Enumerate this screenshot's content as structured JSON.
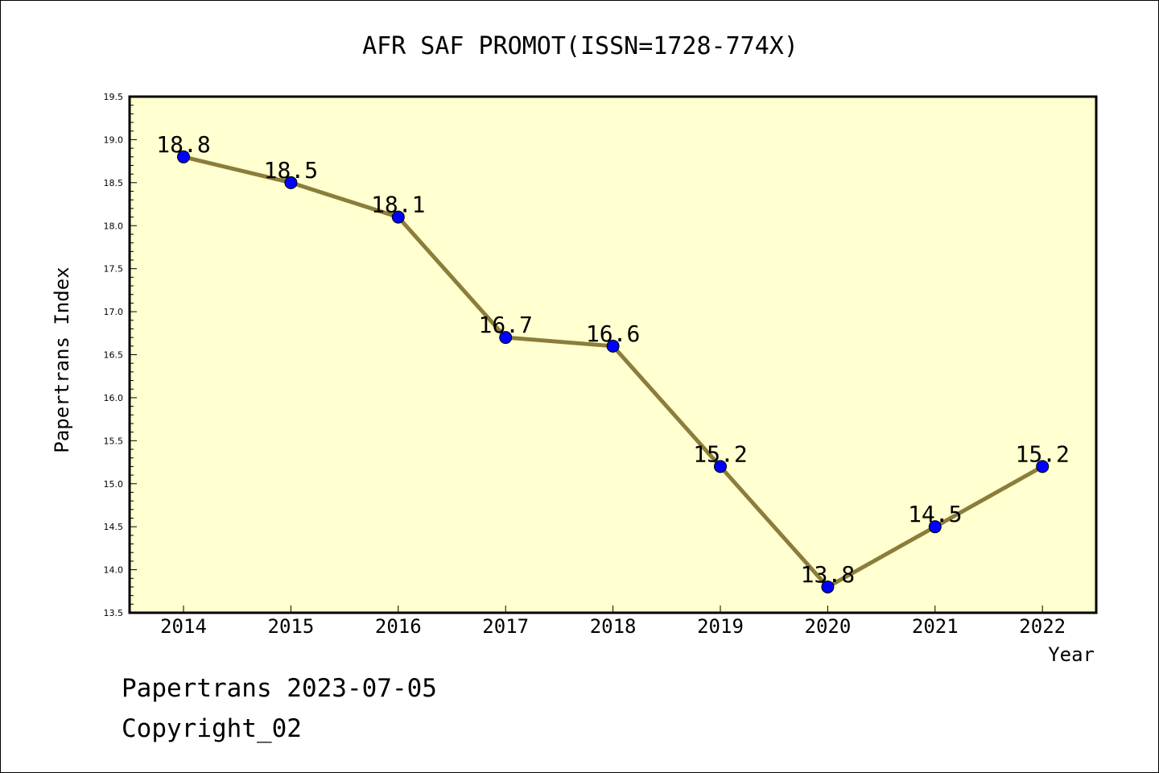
{
  "chart_data": {
    "type": "line",
    "title": "AFR SAF PROMOT(ISSN=1728-774X)",
    "xlabel": "Year",
    "ylabel": "Papertrans Index",
    "categories": [
      "2014",
      "2015",
      "2016",
      "2017",
      "2018",
      "2019",
      "2020",
      "2021",
      "2022"
    ],
    "values": [
      18.8,
      18.5,
      18.1,
      16.7,
      16.6,
      15.2,
      13.8,
      14.5,
      15.2
    ],
    "data_labels": [
      "18.8",
      "18.5",
      "18.1",
      "16.7",
      "16.6",
      "15.2",
      "13.8",
      "14.5",
      "15.2"
    ],
    "ylim": [
      13.5,
      19.5
    ],
    "yticks": [
      "13.5",
      "14.0",
      "14.5",
      "15.0",
      "15.5",
      "16.0",
      "16.5",
      "17.0",
      "17.5",
      "18.0",
      "18.5",
      "19.0",
      "19.5"
    ],
    "grid": false,
    "colors": {
      "plot_background": "#ffffd0",
      "line": "#8b7d3a",
      "marker": "#0000ff"
    }
  },
  "footer": {
    "line1": "Papertrans 2023-07-05",
    "line2": "Copyright_02"
  }
}
